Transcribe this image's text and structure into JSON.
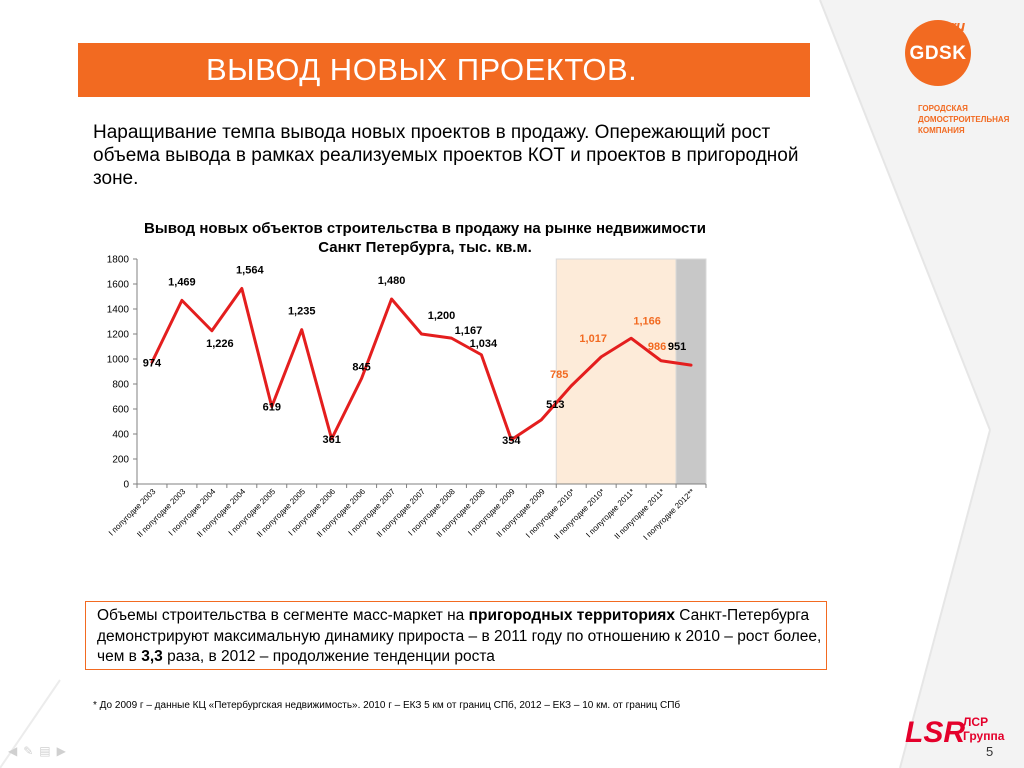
{
  "slide": {
    "title": "ВЫВОД НОВЫХ ПРОЕКТОВ.",
    "intro": "Наращивание темпа вывода новых проектов в продажу. Опережающий рост объема вывода в рамках реализуемых проектов КОТ и проектов в пригородной зоне.",
    "page_number": "5"
  },
  "logo": {
    "name": "GDSK",
    "domain": ".ru",
    "tagline": [
      "ГОРОДСКАЯ",
      "ДОМОСТРОИТЕЛЬНАЯ",
      "КОМПАНИЯ"
    ],
    "color": "#f26a21"
  },
  "lsr_logo": {
    "mark": "LSR",
    "line1": "ЛСР",
    "line2": "Группа",
    "color": "#e4002b"
  },
  "callout": {
    "part1": "Объемы строительства в сегменте масс-маркет на ",
    "bold1": "пригородных территориях",
    "part2": " Санкт-Петербурга демонстрируют максимальную динамику прироста – в 2011 году по отношению к  2010 – рост более, чем в ",
    "bold2": "3,3",
    "part3": " раза, в 2012 – продолжение тенденции роста"
  },
  "footnote": "* До 2009 г – данные КЦ «Петербургская недвижимость». 2010 г – ЕКЗ 5 км от границ СПб, 2012 – ЕКЗ – 10 км. от границ СПб",
  "chart_data": {
    "type": "line",
    "title": "Вывод новых объектов строительства в продажу на рынке недвижимости Санкт Петербурга, тыс. кв.м.",
    "categories": [
      "I полугодие 2003",
      "II полугодие 2003",
      "I полугодие 2004",
      "II полугодие 2004",
      "I полугодие 2005",
      "II полугодие 2005",
      "I полугодие 2006",
      "II полугодие 2006",
      "I полугодие 2007",
      "II полугодие 2007",
      "I полугодие 2008",
      "II полугодие 2008",
      "I полугодие 2009",
      "II полугодие 2009",
      "I полугодие 2010*",
      "II полугодие 2010*",
      "I полугодие 2011*",
      "II полугодие 2011*",
      "I полугодие 2012**"
    ],
    "values": [
      974,
      1469,
      1226,
      1564,
      619,
      1235,
      361,
      845,
      1480,
      1200,
      1167,
      1034,
      354,
      513,
      785,
      1017,
      1166,
      986,
      951
    ],
    "value_labels": [
      "974",
      "1,469",
      "1,226",
      "1,564",
      "619",
      "1,235",
      "361",
      "845",
      "1,480",
      "1,200",
      "1,167",
      "1,034",
      "354",
      "513",
      "785",
      "1,017",
      "1,166",
      "986",
      "951"
    ],
    "label_colors": [
      "#000000",
      "#000000",
      "#000000",
      "#000000",
      "#000000",
      "#000000",
      "#000000",
      "#000000",
      "#000000",
      "#000000",
      "#000000",
      "#000000",
      "#000000",
      "#000000",
      "#f26a21",
      "#f26a21",
      "#f26a21",
      "#f26a21",
      "#000000"
    ],
    "yticks": [
      "0",
      "200",
      "400",
      "600",
      "800",
      "1000",
      "1200",
      "1400",
      "1600",
      "1800"
    ],
    "ylim": [
      0,
      1800
    ],
    "line_color": "#e41e1e",
    "highlight_zones": [
      {
        "from": "I полугодие 2010*",
        "to": "II полугодие 2011*",
        "color": "#fdebd9"
      },
      {
        "from": "I полугодие 2012**",
        "to": "I полугодие 2012**",
        "color": "#c8c8c8"
      }
    ],
    "grid": false,
    "legend": "none"
  }
}
